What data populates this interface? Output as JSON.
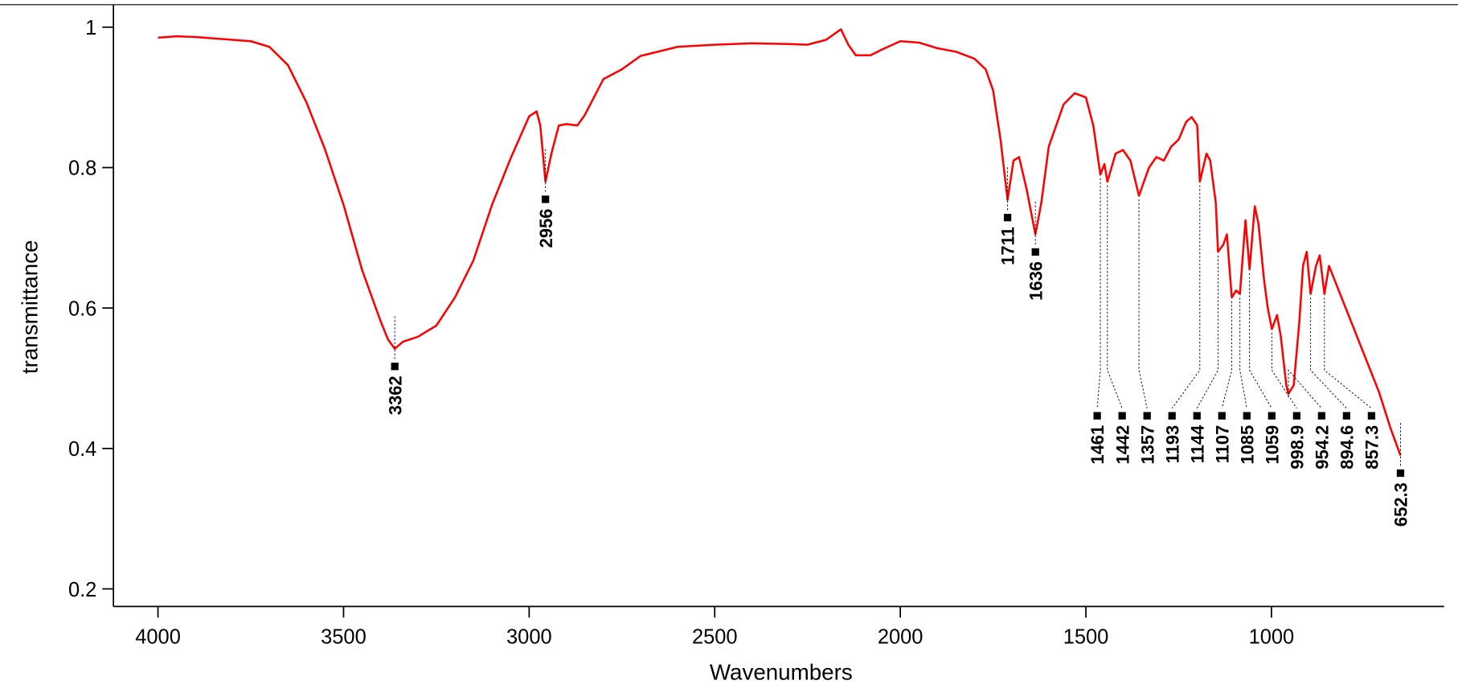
{
  "chart_data": {
    "type": "line",
    "x_label": "Wavenumbers",
    "y_label": "transmittance",
    "color": "#ff0000",
    "xlim": [
      4120,
      535
    ],
    "ylim": [
      0.175,
      1.032
    ],
    "xticks": [
      4000,
      3500,
      3000,
      2500,
      2000,
      1500,
      1000
    ],
    "yticks": [
      0.2,
      0.4,
      0.6,
      0.8,
      1
    ],
    "x": [
      4000,
      3950,
      3900,
      3850,
      3800,
      3750,
      3700,
      3650,
      3600,
      3550,
      3500,
      3450,
      3400,
      3380,
      3362,
      3340,
      3300,
      3250,
      3200,
      3150,
      3100,
      3050,
      3000,
      2980,
      2970,
      2956,
      2940,
      2920,
      2900,
      2870,
      2850,
      2800,
      2750,
      2700,
      2600,
      2500,
      2400,
      2300,
      2250,
      2200,
      2160,
      2140,
      2120,
      2080,
      2050,
      2000,
      1950,
      1900,
      1850,
      1800,
      1770,
      1750,
      1730,
      1711,
      1695,
      1680,
      1660,
      1636,
      1620,
      1600,
      1560,
      1530,
      1500,
      1480,
      1461,
      1450,
      1442,
      1420,
      1400,
      1380,
      1357,
      1330,
      1310,
      1290,
      1270,
      1250,
      1230,
      1215,
      1200,
      1193,
      1175,
      1165,
      1150,
      1144,
      1130,
      1120,
      1107,
      1095,
      1085,
      1070,
      1059,
      1045,
      1035,
      1020,
      1010,
      998.9,
      985,
      975,
      960,
      954.2,
      940,
      925,
      915,
      905,
      894.6,
      880,
      870,
      857.3,
      845,
      830,
      800,
      770,
      740,
      710,
      680,
      652.3
    ],
    "values": [
      0.985,
      0.987,
      0.986,
      0.984,
      0.982,
      0.98,
      0.972,
      0.946,
      0.893,
      0.826,
      0.747,
      0.654,
      0.581,
      0.555,
      0.542,
      0.552,
      0.559,
      0.575,
      0.615,
      0.668,
      0.747,
      0.813,
      0.873,
      0.88,
      0.86,
      0.78,
      0.82,
      0.86,
      0.862,
      0.86,
      0.875,
      0.926,
      0.94,
      0.959,
      0.972,
      0.975,
      0.977,
      0.976,
      0.975,
      0.982,
      0.997,
      0.975,
      0.96,
      0.96,
      0.968,
      0.98,
      0.978,
      0.97,
      0.965,
      0.955,
      0.94,
      0.91,
      0.84,
      0.754,
      0.81,
      0.815,
      0.77,
      0.705,
      0.75,
      0.83,
      0.89,
      0.906,
      0.9,
      0.86,
      0.79,
      0.805,
      0.78,
      0.82,
      0.825,
      0.81,
      0.76,
      0.8,
      0.815,
      0.81,
      0.83,
      0.84,
      0.865,
      0.872,
      0.86,
      0.78,
      0.82,
      0.81,
      0.75,
      0.68,
      0.69,
      0.705,
      0.615,
      0.625,
      0.62,
      0.725,
      0.655,
      0.745,
      0.72,
      0.64,
      0.6,
      0.57,
      0.59,
      0.56,
      0.49,
      0.478,
      0.49,
      0.58,
      0.66,
      0.68,
      0.62,
      0.66,
      0.675,
      0.62,
      0.66,
      0.64,
      0.6,
      0.56,
      0.52,
      0.48,
      0.43,
      0.39
    ],
    "peaks": {
      "x": [
        3362,
        2956,
        1711,
        1636,
        1461,
        1442,
        1357,
        1193,
        1144,
        1107,
        1085,
        1059,
        998.9,
        954.2,
        894.6,
        857.3,
        652.3
      ],
      "y": [
        0.542,
        0.78,
        0.754,
        0.705,
        0.79,
        0.78,
        0.76,
        0.78,
        0.68,
        0.615,
        0.62,
        0.655,
        0.57,
        0.478,
        0.62,
        0.62,
        0.39
      ]
    }
  }
}
